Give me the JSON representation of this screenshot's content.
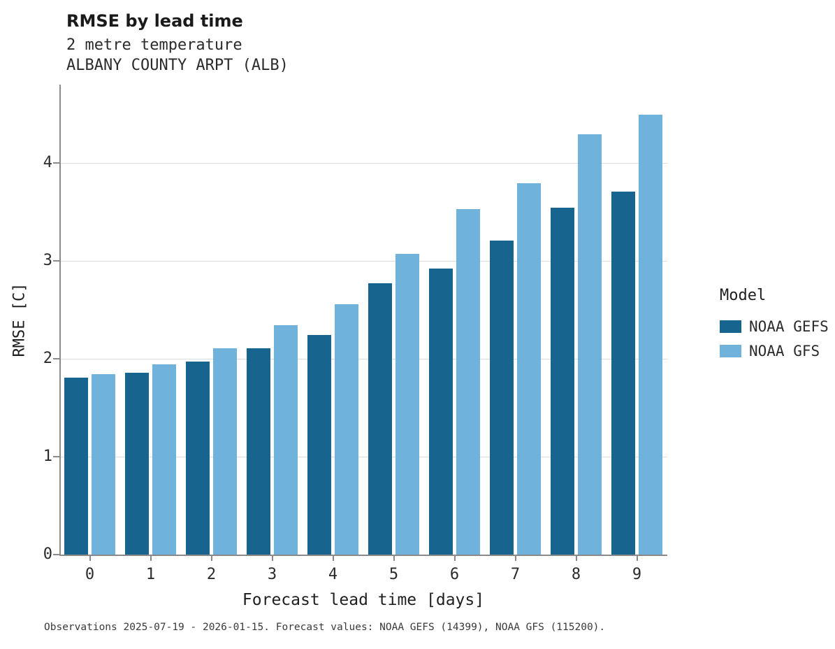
{
  "header": {
    "title": "RMSE by lead time",
    "subtitle1": "2 metre temperature",
    "subtitle2": "ALBANY COUNTY ARPT (ALB)"
  },
  "chart_data": {
    "type": "bar",
    "title": "RMSE by lead time",
    "subtitle": [
      "2 metre temperature",
      "ALBANY COUNTY ARPT (ALB)"
    ],
    "categories": [
      "0",
      "1",
      "2",
      "3",
      "4",
      "5",
      "6",
      "7",
      "8",
      "9"
    ],
    "series": [
      {
        "name": "NOAA GEFS",
        "color": "#17648f",
        "values": [
          1.81,
          1.86,
          1.97,
          2.11,
          2.24,
          2.77,
          2.92,
          3.21,
          3.54,
          3.71
        ]
      },
      {
        "name": "NOAA GFS",
        "color": "#6fb2dc",
        "values": [
          1.84,
          1.94,
          2.11,
          2.34,
          2.56,
          3.07,
          3.53,
          3.79,
          4.29,
          4.49
        ]
      }
    ],
    "xlabel": "Forecast lead time [days]",
    "ylabel": "RMSE [C]",
    "ylim": [
      0,
      4.8
    ],
    "yticks": [
      0,
      1,
      2,
      3,
      4
    ],
    "grid": true,
    "legend_title": "Model",
    "legend_position": "right"
  },
  "caption": "Observations 2025-07-19 - 2026-01-15. Forecast values: NOAA GEFS (14399), NOAA GFS (115200)."
}
